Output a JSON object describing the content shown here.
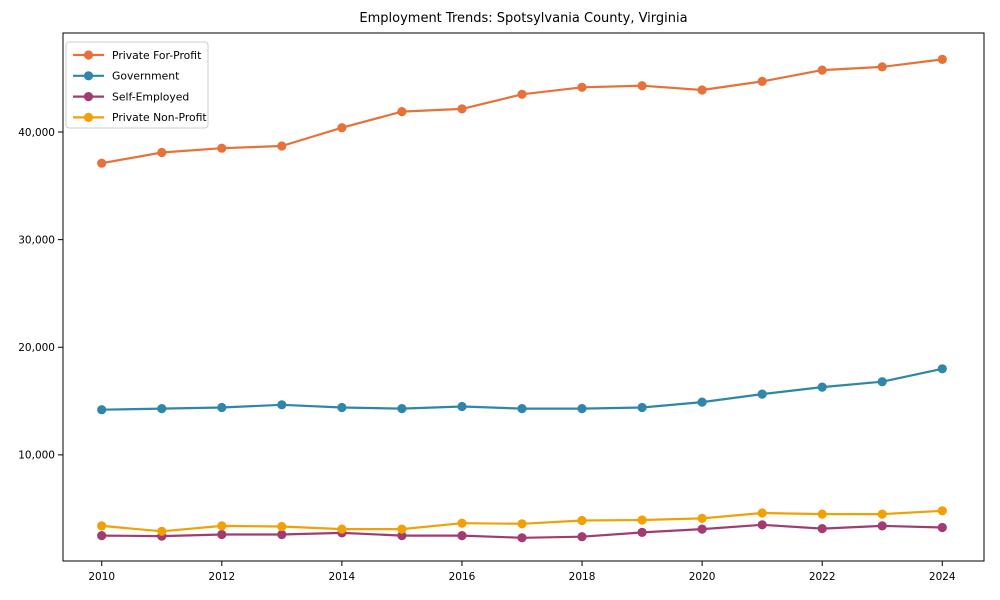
{
  "title": "Employment Trends: Spotsylvania County, Virginia",
  "chart_data": {
    "type": "line",
    "title": "Employment Trends: Spotsylvania County, Virginia",
    "xlabel": "",
    "ylabel": "",
    "x": [
      2010,
      2011,
      2012,
      2013,
      2014,
      2015,
      2016,
      2017,
      2018,
      2019,
      2020,
      2021,
      2022,
      2023,
      2024
    ],
    "series": [
      {
        "name": "Private For-Profit",
        "color": "#E8713A",
        "values": [
          37100,
          38100,
          38500,
          38700,
          40400,
          41900,
          42150,
          43500,
          44150,
          44300,
          43900,
          44700,
          45750,
          46050,
          46750
        ]
      },
      {
        "name": "Government",
        "color": "#2E86AB",
        "values": [
          14200,
          14300,
          14400,
          14650,
          14400,
          14300,
          14500,
          14300,
          14300,
          14400,
          14900,
          15650,
          16300,
          16800,
          18000
        ]
      },
      {
        "name": "Self-Employed",
        "color": "#A23B72",
        "values": [
          2500,
          2450,
          2600,
          2600,
          2750,
          2500,
          2500,
          2300,
          2400,
          2800,
          3100,
          3500,
          3150,
          3400,
          3250
        ]
      },
      {
        "name": "Private Non-Profit",
        "color": "#F2A104",
        "values": [
          3400,
          2900,
          3400,
          3350,
          3100,
          3100,
          3650,
          3600,
          3900,
          3950,
          4100,
          4600,
          4500,
          4500,
          4800
        ]
      }
    ],
    "xticks": [
      2010,
      2012,
      2014,
      2016,
      2018,
      2020,
      2022,
      2024
    ],
    "xtick_labels": [
      "2010",
      "2012",
      "2014",
      "2016",
      "2018",
      "2020",
      "2022",
      "2024"
    ],
    "yticks": [
      10000,
      20000,
      30000,
      40000
    ],
    "ytick_labels": [
      "10,000",
      "20,000",
      "30,000",
      "40,000"
    ],
    "xlim": [
      2009.355,
      2024.695
    ],
    "ylim": [
      140,
      49200
    ],
    "grid": false,
    "legend_position": "upper-left",
    "axis_color": "#000000",
    "text_color": "#000000",
    "legend_border_color": "#cccccc",
    "legend_bg_color": "#ffffff"
  }
}
